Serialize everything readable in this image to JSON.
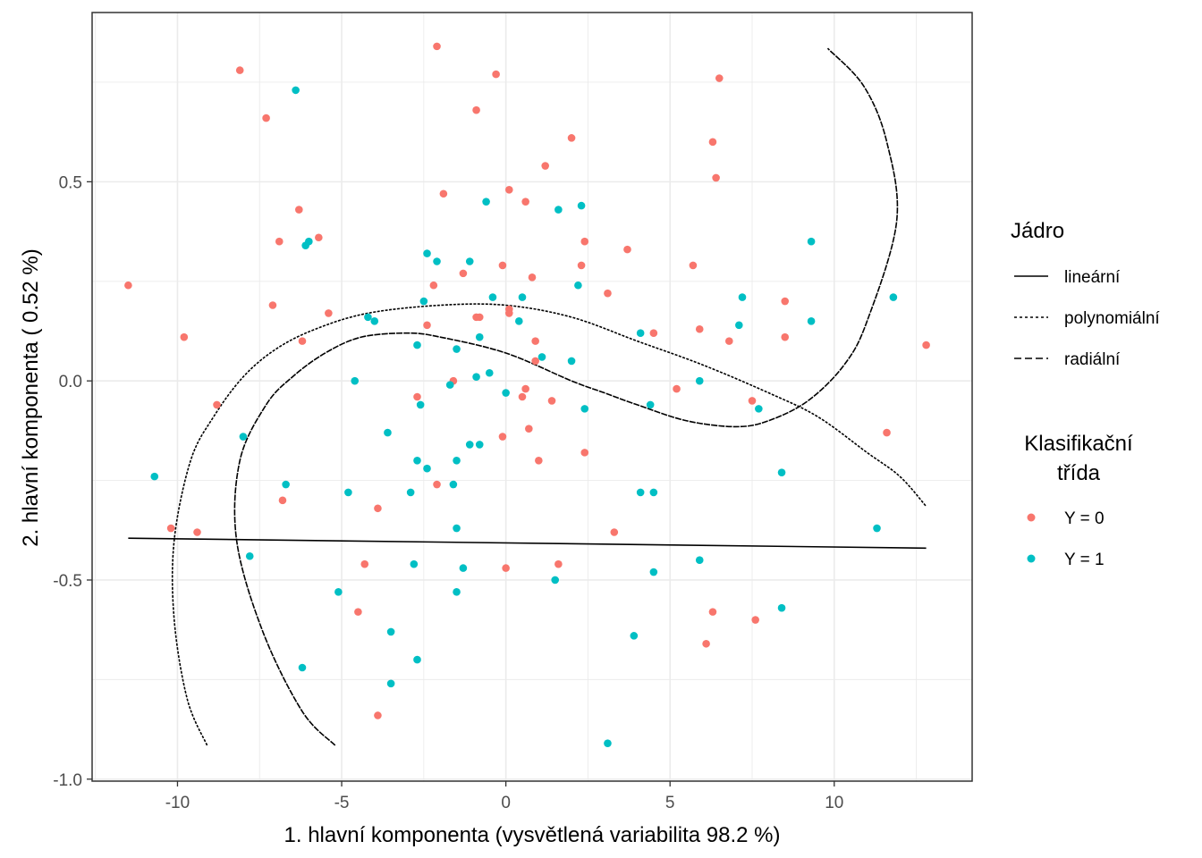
{
  "chart_data": {
    "type": "scatter",
    "xlabel": "1. hlavní komponenta (vysvětlená variabilita 98.2 %)",
    "ylabel": "2. hlavní komponenta ( 0.52 %)",
    "xlim": [
      -12.6,
      14.2
    ],
    "ylim": [
      -1.005,
      0.925
    ],
    "x_ticks": [
      -10,
      -5,
      0,
      5,
      10
    ],
    "x_tick_labels": [
      "-10",
      "-5",
      "0",
      "5",
      "10"
    ],
    "y_ticks": [
      -1.0,
      -0.5,
      0.0,
      0.5
    ],
    "y_tick_labels": [
      "-1.0",
      "-0.5",
      "0.0",
      "0.5"
    ],
    "grid": true,
    "legends": [
      {
        "title": "Jádro",
        "entries": [
          {
            "label": "lineární",
            "dash": "solid"
          },
          {
            "label": "polynomiální",
            "dash": "dotted"
          },
          {
            "label": "radiální",
            "dash": "dashed"
          }
        ]
      },
      {
        "title_lines": [
          "Klasifikační",
          "třída"
        ],
        "entries": [
          {
            "label": "Y = 0",
            "color": "#F8766D"
          },
          {
            "label": "Y = 1",
            "color": "#00BFC4"
          }
        ]
      }
    ],
    "series": [
      {
        "name": "Y = 0",
        "color": "#F8766D",
        "points": [
          [
            -8.1,
            0.78
          ],
          [
            -7.3,
            0.66
          ],
          [
            -6.3,
            0.43
          ],
          [
            -6.9,
            0.35
          ],
          [
            -5.7,
            0.36
          ],
          [
            -7.1,
            0.19
          ],
          [
            -5.4,
            0.17
          ],
          [
            -6.2,
            0.1
          ],
          [
            -9.8,
            0.11
          ],
          [
            -11.5,
            0.24
          ],
          [
            -8.8,
            -0.06
          ],
          [
            -6.8,
            -0.3
          ],
          [
            -3.9,
            -0.32
          ],
          [
            -10.2,
            -0.37
          ],
          [
            -9.4,
            -0.38
          ],
          [
            -4.3,
            -0.46
          ],
          [
            -4.5,
            -0.58
          ],
          [
            -3.9,
            -0.84
          ],
          [
            -2.1,
            0.84
          ],
          [
            -0.3,
            0.77
          ],
          [
            -0.9,
            0.68
          ],
          [
            -1.9,
            0.47
          ],
          [
            -2.2,
            0.24
          ],
          [
            -2.4,
            0.14
          ],
          [
            -1.3,
            0.27
          ],
          [
            -0.9,
            0.16
          ],
          [
            -0.8,
            0.16
          ],
          [
            -0.1,
            0.29
          ],
          [
            0.1,
            0.48
          ],
          [
            0.6,
            0.45
          ],
          [
            0.1,
            0.18
          ],
          [
            0.1,
            0.17
          ],
          [
            0.8,
            0.26
          ],
          [
            0.9,
            0.1
          ],
          [
            0.9,
            0.05
          ],
          [
            0.6,
            -0.02
          ],
          [
            -2.7,
            -0.04
          ],
          [
            -1.6,
            0.0
          ],
          [
            0.5,
            -0.04
          ],
          [
            -0.1,
            -0.14
          ],
          [
            0.7,
            -0.12
          ],
          [
            1.0,
            -0.2
          ],
          [
            -2.1,
            -0.26
          ],
          [
            0.0,
            -0.47
          ],
          [
            1.6,
            -0.46
          ],
          [
            1.2,
            0.54
          ],
          [
            2.0,
            0.61
          ],
          [
            2.3,
            0.29
          ],
          [
            2.4,
            0.35
          ],
          [
            3.1,
            0.22
          ],
          [
            3.7,
            0.33
          ],
          [
            1.4,
            -0.05
          ],
          [
            2.4,
            -0.18
          ],
          [
            3.3,
            -0.38
          ],
          [
            5.7,
            0.29
          ],
          [
            5.9,
            0.13
          ],
          [
            6.3,
            0.6
          ],
          [
            6.4,
            0.51
          ],
          [
            6.5,
            0.76
          ],
          [
            6.8,
            0.1
          ],
          [
            4.5,
            0.12
          ],
          [
            5.2,
            -0.02
          ],
          [
            7.5,
            -0.05
          ],
          [
            6.3,
            -0.58
          ],
          [
            6.1,
            -0.66
          ],
          [
            7.6,
            -0.6
          ],
          [
            8.5,
            0.2
          ],
          [
            8.5,
            0.11
          ],
          [
            11.6,
            -0.13
          ],
          [
            12.8,
            0.09
          ]
        ]
      },
      {
        "name": "Y = 1",
        "color": "#00BFC4",
        "points": [
          [
            -6.4,
            0.73
          ],
          [
            -6.0,
            0.35
          ],
          [
            -6.1,
            0.34
          ],
          [
            -4.2,
            0.16
          ],
          [
            -4.0,
            0.15
          ],
          [
            -4.6,
            0.0
          ],
          [
            -3.6,
            -0.13
          ],
          [
            -8.0,
            -0.14
          ],
          [
            -10.7,
            -0.24
          ],
          [
            -6.7,
            -0.26
          ],
          [
            -4.8,
            -0.28
          ],
          [
            -7.8,
            -0.44
          ],
          [
            -5.1,
            -0.53
          ],
          [
            -3.5,
            -0.63
          ],
          [
            -6.2,
            -0.72
          ],
          [
            -3.5,
            -0.76
          ],
          [
            -2.4,
            0.32
          ],
          [
            -2.1,
            0.3
          ],
          [
            -1.1,
            0.3
          ],
          [
            -2.5,
            0.2
          ],
          [
            -0.6,
            0.45
          ],
          [
            -0.4,
            0.21
          ],
          [
            -2.7,
            0.09
          ],
          [
            -0.8,
            0.11
          ],
          [
            -1.7,
            -0.01
          ],
          [
            -0.9,
            0.01
          ],
          [
            -0.5,
            0.02
          ],
          [
            -2.6,
            -0.06
          ],
          [
            -1.1,
            -0.16
          ],
          [
            -0.8,
            -0.16
          ],
          [
            -1.5,
            -0.2
          ],
          [
            -2.7,
            -0.2
          ],
          [
            -2.4,
            -0.22
          ],
          [
            -1.6,
            -0.26
          ],
          [
            -2.9,
            -0.28
          ],
          [
            -1.5,
            -0.37
          ],
          [
            -2.8,
            -0.46
          ],
          [
            -1.3,
            -0.47
          ],
          [
            -1.5,
            -0.53
          ],
          [
            -2.7,
            -0.7
          ],
          [
            -1.5,
            0.08
          ],
          [
            0.0,
            -0.03
          ],
          [
            0.4,
            0.15
          ],
          [
            0.5,
            0.21
          ],
          [
            1.6,
            0.43
          ],
          [
            2.3,
            0.44
          ],
          [
            2.2,
            0.24
          ],
          [
            1.1,
            0.06
          ],
          [
            2.0,
            0.05
          ],
          [
            2.4,
            -0.07
          ],
          [
            1.5,
            -0.5
          ],
          [
            4.1,
            -0.28
          ],
          [
            4.5,
            -0.28
          ],
          [
            4.5,
            -0.48
          ],
          [
            4.1,
            0.12
          ],
          [
            4.4,
            -0.06
          ],
          [
            5.9,
            0.0
          ],
          [
            5.9,
            -0.45
          ],
          [
            3.9,
            -0.64
          ],
          [
            3.1,
            -0.91
          ],
          [
            7.2,
            0.21
          ],
          [
            7.1,
            0.14
          ],
          [
            7.7,
            -0.07
          ],
          [
            8.4,
            -0.23
          ],
          [
            8.4,
            -0.57
          ],
          [
            9.3,
            0.35
          ],
          [
            9.3,
            0.15
          ],
          [
            11.3,
            -0.37
          ],
          [
            11.8,
            0.21
          ]
        ]
      }
    ],
    "lines": [
      {
        "name": "lineární",
        "dash": "solid",
        "points": [
          [
            -11.5,
            -0.395
          ],
          [
            12.8,
            -0.42
          ]
        ]
      },
      {
        "name": "polynomiální",
        "dash": "dotted",
        "points": [
          [
            -9.1,
            -0.915
          ],
          [
            -9.7,
            -0.8
          ],
          [
            -10.1,
            -0.6
          ],
          [
            -10.1,
            -0.4
          ],
          [
            -9.6,
            -0.2
          ],
          [
            -8.9,
            -0.09
          ],
          [
            -8.0,
            0.01
          ],
          [
            -7.0,
            0.08
          ],
          [
            -5.8,
            0.13
          ],
          [
            -4.2,
            0.17
          ],
          [
            -2.0,
            0.19
          ],
          [
            0.0,
            0.19
          ],
          [
            2.0,
            0.16
          ],
          [
            4.0,
            0.1
          ],
          [
            6.0,
            0.04
          ],
          [
            8.0,
            -0.03
          ],
          [
            9.5,
            -0.09
          ],
          [
            11.0,
            -0.18
          ],
          [
            12.0,
            -0.24
          ],
          [
            12.8,
            -0.315
          ]
        ]
      },
      {
        "name": "radiální",
        "dash": "dashed",
        "points": [
          [
            -5.2,
            -0.915
          ],
          [
            -6.2,
            -0.83
          ],
          [
            -7.4,
            -0.63
          ],
          [
            -8.2,
            -0.4
          ],
          [
            -8.1,
            -0.2
          ],
          [
            -7.3,
            -0.06
          ],
          [
            -6.5,
            0.01
          ],
          [
            -5.5,
            0.07
          ],
          [
            -4.4,
            0.11
          ],
          [
            -3.0,
            0.12
          ],
          [
            -2.0,
            0.11
          ],
          [
            0.0,
            0.07
          ],
          [
            2.0,
            0.0
          ],
          [
            3.0,
            -0.03
          ],
          [
            4.0,
            -0.06
          ],
          [
            5.5,
            -0.1
          ],
          [
            7.0,
            -0.115
          ],
          [
            8.0,
            -0.1
          ],
          [
            9.2,
            -0.05
          ],
          [
            10.3,
            0.04
          ],
          [
            11.0,
            0.15
          ],
          [
            11.9,
            0.4
          ],
          [
            11.6,
            0.6
          ],
          [
            10.9,
            0.74
          ],
          [
            9.8,
            0.835
          ]
        ]
      }
    ]
  }
}
